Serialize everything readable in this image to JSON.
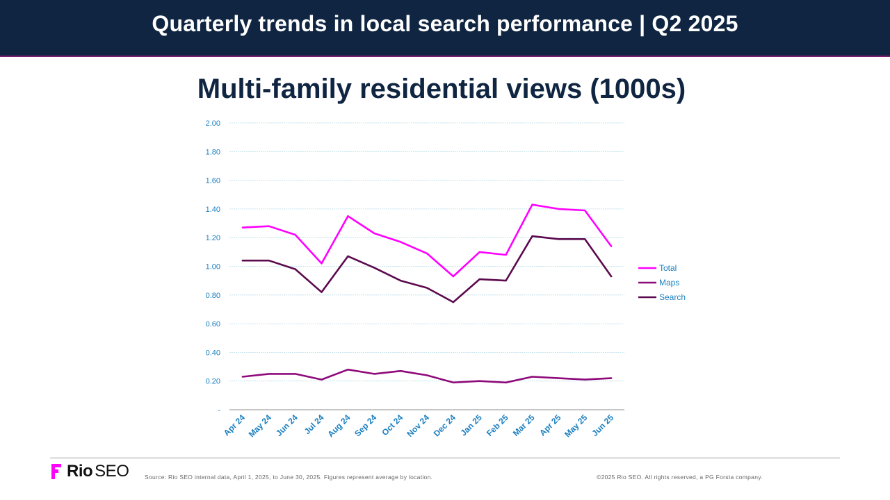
{
  "header": {
    "title": "Quarterly trends in local search performance  |  Q2 2025"
  },
  "chart_data": {
    "type": "line",
    "title": "Multi-family residential views (1000s)",
    "categories": [
      "Apr 24",
      "May 24",
      "Jun 24",
      "Jul 24",
      "Aug 24",
      "Sep 24",
      "Oct 24",
      "Nov 24",
      "Dec 24",
      "Jan 25",
      "Feb 25",
      "Mar 25",
      "Apr 25",
      "May 25",
      "Jun 25"
    ],
    "series": [
      {
        "name": "Total",
        "color": "#ff00ff",
        "values": [
          1.27,
          1.28,
          1.22,
          1.02,
          1.35,
          1.23,
          1.17,
          1.09,
          0.93,
          1.1,
          1.08,
          1.43,
          1.4,
          1.39,
          1.14
        ]
      },
      {
        "name": "Maps",
        "color": "#8e0a7a",
        "values": [
          0.23,
          0.25,
          0.25,
          0.21,
          0.28,
          0.25,
          0.27,
          0.24,
          0.19,
          0.2,
          0.19,
          0.23,
          0.22,
          0.21,
          0.22
        ]
      },
      {
        "name": "Search",
        "color": "#5c0a4e",
        "values": [
          1.04,
          1.04,
          0.98,
          0.82,
          1.07,
          0.99,
          0.9,
          0.85,
          0.75,
          0.91,
          0.9,
          1.21,
          1.19,
          1.19,
          0.93
        ]
      }
    ],
    "yticks": [
      "-",
      "0.20",
      "0.40",
      "0.60",
      "0.80",
      "1.00",
      "1.20",
      "1.40",
      "1.60",
      "1.80",
      "2.00"
    ],
    "ylim": [
      0,
      2.0
    ],
    "grid": true,
    "legend": "right"
  },
  "footer": {
    "logo_rio": "Rio",
    "logo_seo": "SEO",
    "source": "Source: Rio SEO internal data, April 1, 2025, to June 30, 2025. Figures represent average by location.",
    "copyright": "©2025 Rio SEO. All rights reserved, a PG Forsta company."
  }
}
